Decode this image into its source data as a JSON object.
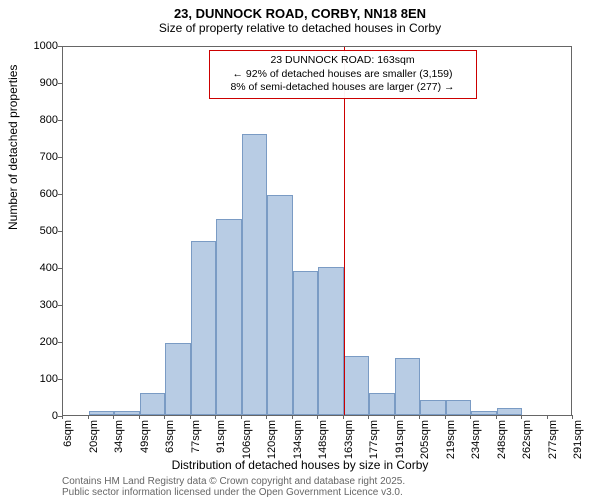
{
  "title_main": "23, DUNNOCK ROAD, CORBY, NN18 8EN",
  "title_sub": "Size of property relative to detached houses in Corby",
  "y_axis_label": "Number of detached properties",
  "x_axis_label": "Distribution of detached houses by size in Corby",
  "attribution_line1": "Contains HM Land Registry data © Crown copyright and database right 2025.",
  "attribution_line2": "Public sector information licensed under the Open Government Licence v3.0.",
  "chart": {
    "type": "histogram",
    "background_color": "#ffffff",
    "bar_fill": "#b8cce4",
    "bar_border": "#7a9bc4",
    "axis_color": "#666666",
    "ylim": [
      0,
      1000
    ],
    "y_ticks": [
      0,
      100,
      200,
      300,
      400,
      500,
      600,
      700,
      800,
      900,
      1000
    ],
    "x_ticks": [
      "6sqm",
      "20sqm",
      "34sqm",
      "49sqm",
      "63sqm",
      "77sqm",
      "91sqm",
      "106sqm",
      "120sqm",
      "134sqm",
      "148sqm",
      "163sqm",
      "177sqm",
      "191sqm",
      "205sqm",
      "219sqm",
      "234sqm",
      "248sqm",
      "262sqm",
      "277sqm",
      "291sqm"
    ],
    "bars": [
      0,
      10,
      10,
      60,
      195,
      470,
      530,
      760,
      595,
      390,
      400,
      160,
      60,
      155,
      40,
      40,
      10,
      20,
      0,
      0,
      0
    ],
    "reference": {
      "color": "#cc0000",
      "x_index": 11,
      "label_line1": "23 DUNNOCK ROAD: 163sqm",
      "label_line2": "← 92% of detached houses are smaller (3,159)",
      "label_line3": "8% of semi-detached houses are larger (277) →"
    }
  }
}
